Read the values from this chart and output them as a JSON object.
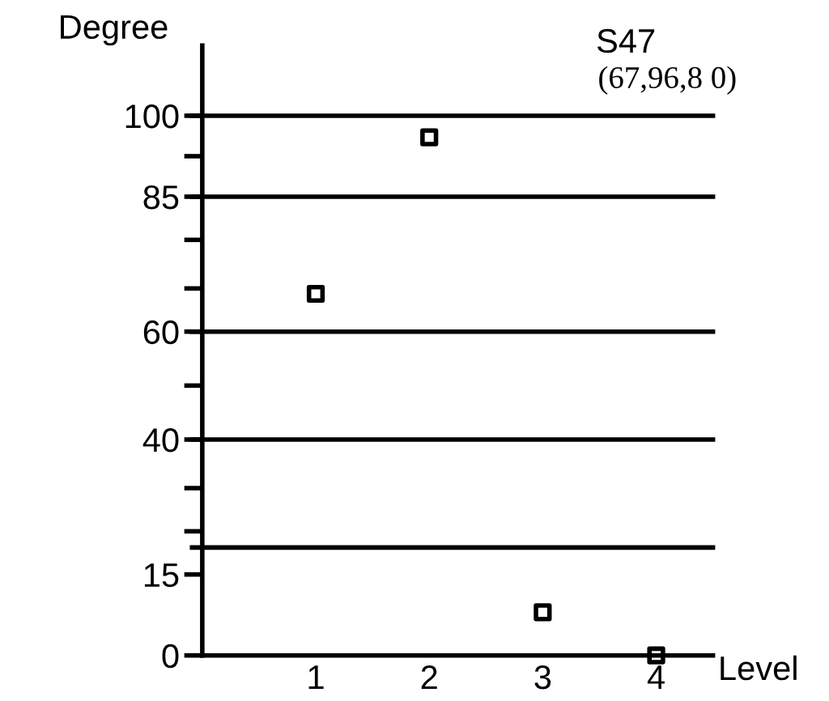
{
  "chart_data": {
    "type": "scatter",
    "title": "S47",
    "subtitle": "(67,96,8 0)",
    "xlabel": "Level",
    "ylabel": "Degree",
    "x": [
      1,
      2,
      3,
      4
    ],
    "values": [
      67,
      96,
      8,
      0
    ],
    "color": "#000000",
    "marker": "square",
    "xlim": [
      0,
      4.5
    ],
    "xticks": [
      1,
      2,
      3,
      4
    ],
    "ylim": [
      0,
      113
    ],
    "yticks": [
      0,
      15,
      {
        "value": 23,
        "label": null
      },
      {
        "value": 31,
        "label": null
      },
      40,
      {
        "value": 50,
        "label": null
      },
      60,
      {
        "value": 68,
        "label": null
      },
      {
        "value": 77,
        "label": null
      },
      85,
      {
        "value": 92.5,
        "label": null
      },
      100
    ],
    "ref_lines": [
      {
        "axis": "y",
        "value": 100,
        "label": null
      },
      {
        "axis": "y",
        "value": 85,
        "label": null
      },
      {
        "axis": "y",
        "value": 60,
        "label": null
      },
      {
        "axis": "y",
        "value": 40,
        "label": null
      },
      {
        "axis": "y",
        "value": 20,
        "label": null
      }
    ],
    "grid": false,
    "legend": false
  }
}
